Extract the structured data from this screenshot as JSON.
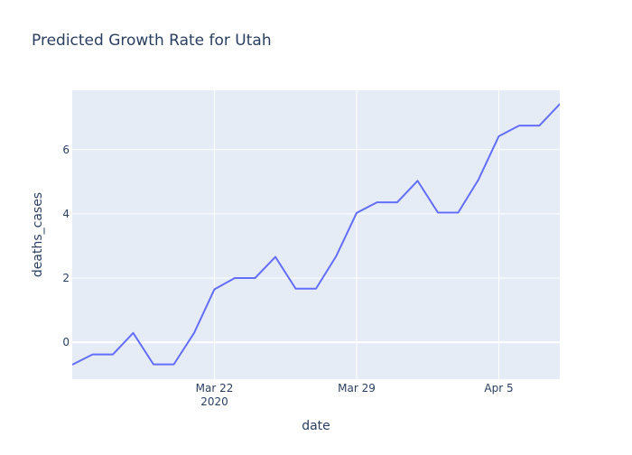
{
  "chart_data": {
    "type": "line",
    "title": "Predicted Growth Rate for Utah",
    "xlabel": "date",
    "ylabel": "deaths_cases",
    "x_ticks": [
      {
        "date": "2020-03-22",
        "label": "Mar 22",
        "sublabel": "2020"
      },
      {
        "date": "2020-03-29",
        "label": "Mar 29",
        "sublabel": ""
      },
      {
        "date": "2020-04-05",
        "label": "Apr 5",
        "sublabel": ""
      }
    ],
    "y_ticks": [
      0,
      2,
      4,
      6
    ],
    "xlim": [
      "2020-03-15",
      "2020-04-08"
    ],
    "ylim": [
      -1.15,
      7.85
    ],
    "grid": true,
    "colors": {
      "line": "#636efa",
      "plot_bg": "#e5ecf6",
      "grid": "#ffffff",
      "text": "#2a3f5f",
      "title": "#2a3f5f"
    },
    "series": [
      {
        "x": [
          "2020-03-15",
          "2020-03-16",
          "2020-03-17",
          "2020-03-18",
          "2020-03-19",
          "2020-03-20",
          "2020-03-21",
          "2020-03-22",
          "2020-03-23",
          "2020-03-24",
          "2020-03-25",
          "2020-03-26",
          "2020-03-27",
          "2020-03-28",
          "2020-03-29",
          "2020-03-30",
          "2020-03-31",
          "2020-04-01",
          "2020-04-02",
          "2020-04-03",
          "2020-04-04",
          "2020-04-05",
          "2020-04-06",
          "2020-04-07",
          "2020-04-08",
          "2020-04-09"
        ],
        "y": [
          -0.7,
          -0.38,
          -0.38,
          0.29,
          -0.69,
          -0.69,
          0.29,
          1.65,
          2.0,
          2.0,
          2.66,
          1.67,
          1.67,
          2.69,
          4.03,
          4.36,
          4.36,
          5.03,
          4.04,
          4.04,
          5.07,
          6.42,
          6.75,
          6.75,
          7.42,
          7.42
        ]
      }
    ]
  }
}
